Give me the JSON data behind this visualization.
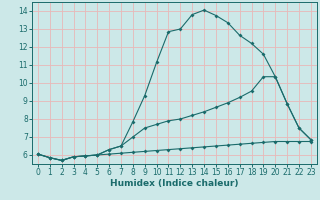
{
  "xlabel": "Humidex (Indice chaleur)",
  "bg_color": "#cce8e8",
  "grid_color": "#e8b8b8",
  "line_color": "#1a6b6b",
  "xlim": [
    -0.5,
    23.5
  ],
  "ylim": [
    5.5,
    14.5
  ],
  "xticks": [
    0,
    1,
    2,
    3,
    4,
    5,
    6,
    7,
    8,
    9,
    10,
    11,
    12,
    13,
    14,
    15,
    16,
    17,
    18,
    19,
    20,
    21,
    22,
    23
  ],
  "yticks": [
    6,
    7,
    8,
    9,
    10,
    11,
    12,
    13,
    14
  ],
  "line1_x": [
    0,
    1,
    2,
    3,
    4,
    5,
    6,
    7,
    8,
    9,
    10,
    11,
    12,
    13,
    14,
    15,
    16,
    17,
    18,
    19,
    20,
    21,
    22,
    23
  ],
  "line1_y": [
    6.05,
    5.85,
    5.7,
    5.9,
    5.95,
    6.0,
    6.05,
    6.1,
    6.15,
    6.2,
    6.25,
    6.3,
    6.35,
    6.4,
    6.45,
    6.5,
    6.55,
    6.6,
    6.65,
    6.7,
    6.75,
    6.75,
    6.75,
    6.75
  ],
  "line2_x": [
    0,
    1,
    2,
    3,
    4,
    5,
    6,
    7,
    8,
    9,
    10,
    11,
    12,
    13,
    14,
    15,
    16,
    17,
    18,
    19,
    20,
    21,
    22,
    23
  ],
  "line2_y": [
    6.05,
    5.85,
    5.7,
    5.9,
    5.95,
    6.0,
    6.3,
    6.5,
    7.0,
    7.5,
    7.7,
    7.9,
    8.0,
    8.2,
    8.4,
    8.65,
    8.9,
    9.2,
    9.55,
    10.35,
    10.35,
    8.85,
    7.5,
    6.85
  ],
  "line3_x": [
    0,
    1,
    2,
    3,
    4,
    5,
    6,
    7,
    8,
    9,
    10,
    11,
    12,
    13,
    14,
    15,
    16,
    17,
    18,
    19,
    20,
    21,
    22,
    23
  ],
  "line3_y": [
    6.05,
    5.85,
    5.7,
    5.9,
    5.95,
    6.0,
    6.3,
    6.5,
    7.85,
    9.3,
    11.15,
    12.85,
    13.0,
    13.8,
    14.05,
    13.75,
    13.35,
    12.65,
    12.2,
    11.6,
    10.35,
    8.85,
    7.5,
    6.85
  ]
}
